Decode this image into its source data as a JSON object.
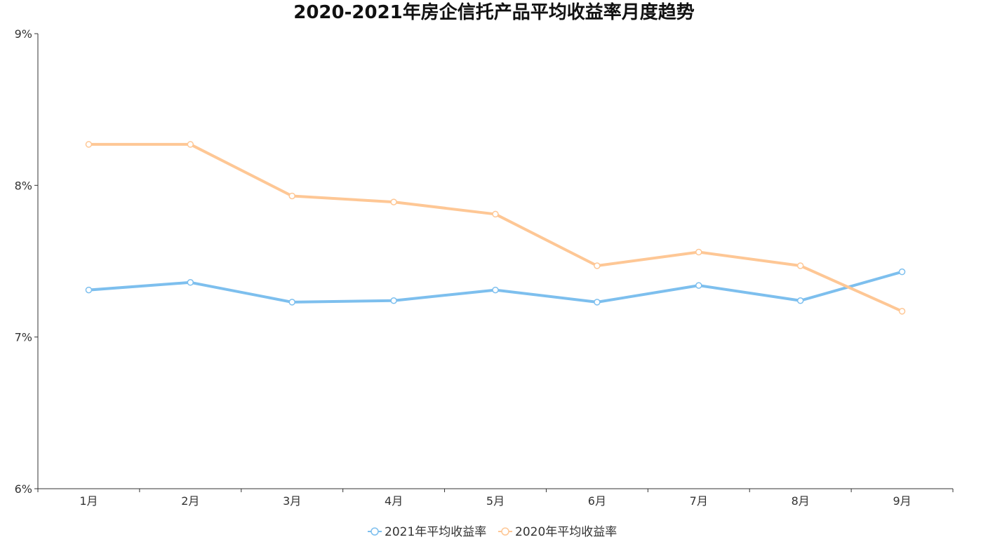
{
  "chart_data": {
    "type": "line",
    "title": "2020-2021年房企信托产品平均收益率月度趋势",
    "xlabel": "",
    "ylabel": "",
    "categories": [
      "1月",
      "2月",
      "3月",
      "4月",
      "5月",
      "6月",
      "7月",
      "8月",
      "9月"
    ],
    "y_ticks": [
      "6%",
      "7%",
      "8%",
      "9%"
    ],
    "ylim": [
      6,
      9
    ],
    "grid": false,
    "legend_position": "bottom",
    "series": [
      {
        "name": "2021年平均收益率",
        "color": "#7dbfee",
        "values": [
          7.31,
          7.36,
          7.23,
          7.24,
          7.31,
          7.23,
          7.34,
          7.24,
          7.43
        ]
      },
      {
        "name": "2020年平均收益率",
        "color": "#fec795",
        "values": [
          8.27,
          8.27,
          7.93,
          7.89,
          7.81,
          7.47,
          7.56,
          7.47,
          7.17
        ]
      }
    ]
  }
}
